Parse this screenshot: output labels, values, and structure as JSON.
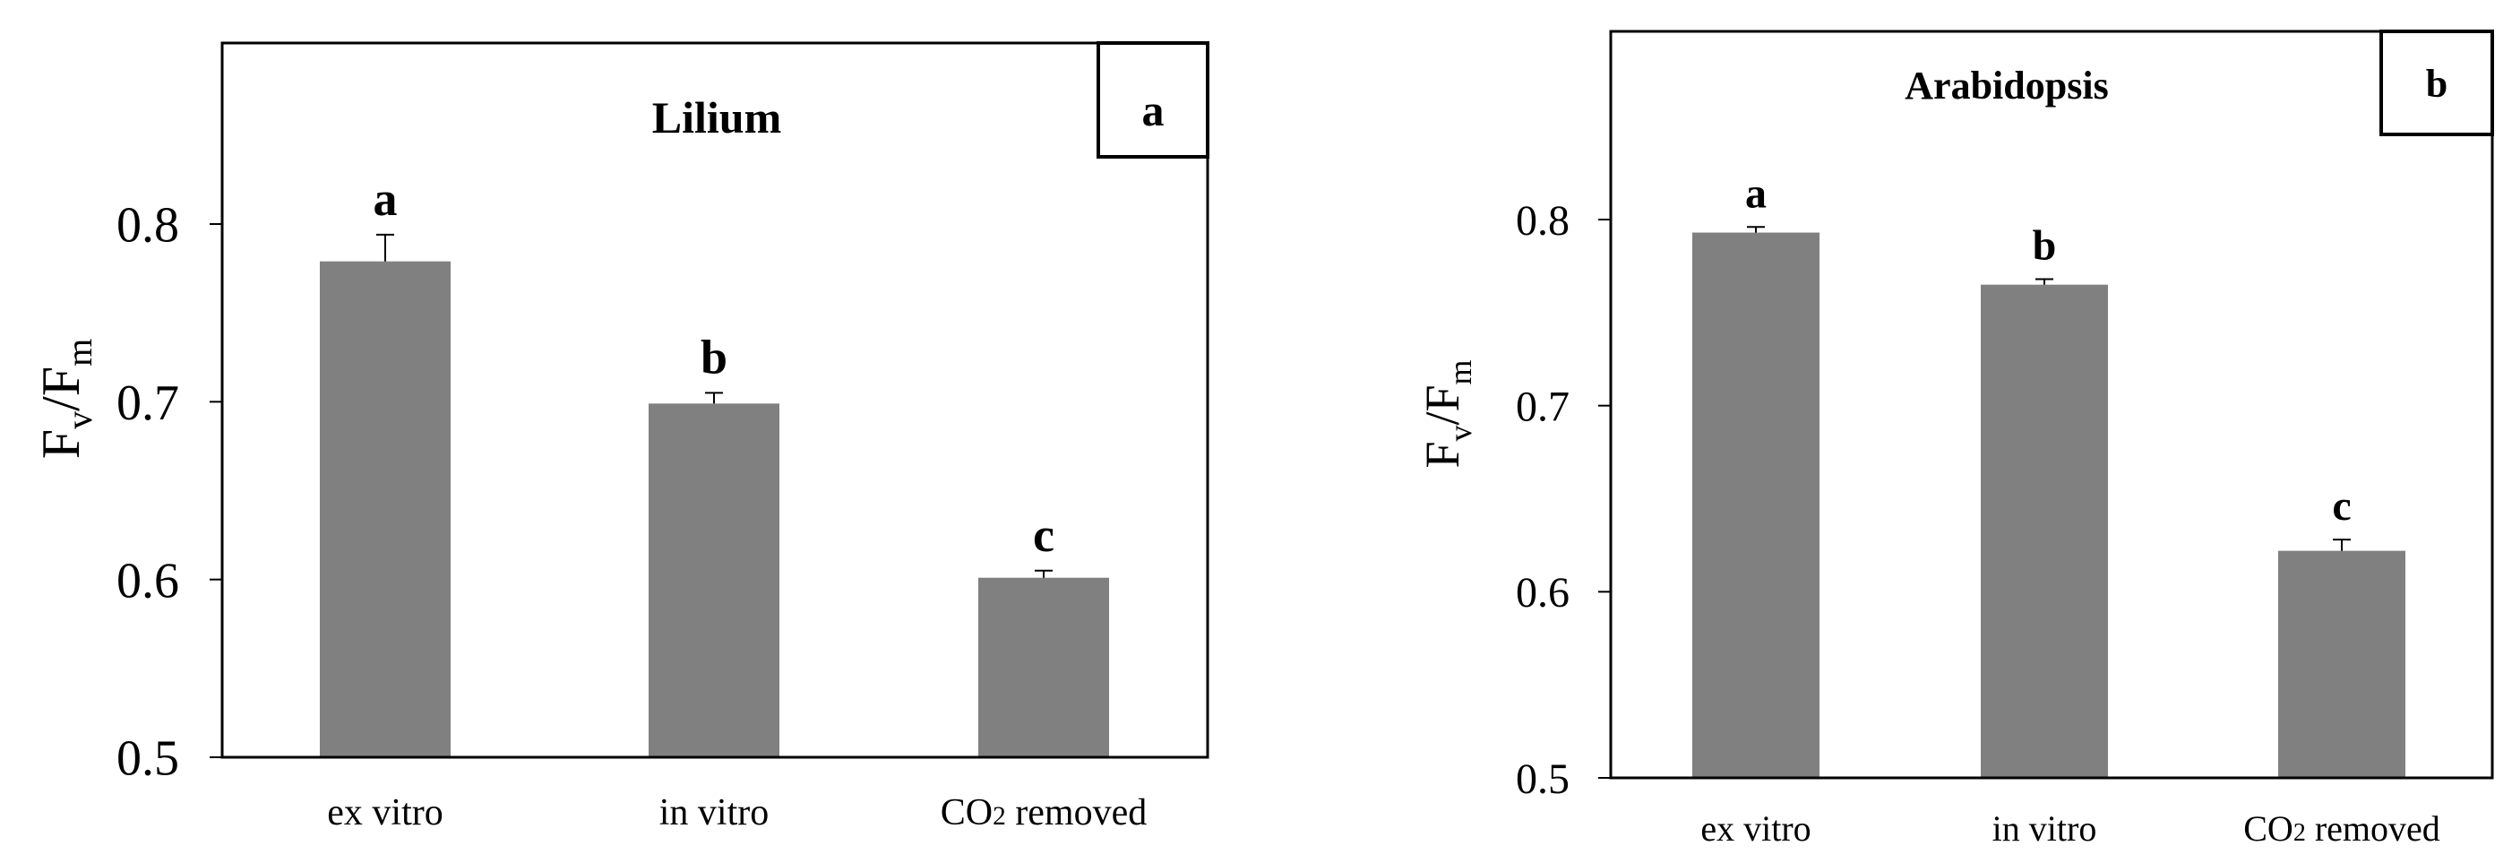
{
  "chart_data": [
    {
      "type": "bar",
      "title": "Lilium",
      "panel_label": "a",
      "ylabel": {
        "base": "F",
        "sub1": "v",
        "slash": "/F",
        "sub2": "m"
      },
      "ylim": [
        0.5,
        0.85
      ],
      "yticks": [
        "0.5",
        "0.6",
        "0.7",
        "0.8"
      ],
      "categories": [
        {
          "main": "ex vitro",
          "sub": "",
          "rest": ""
        },
        {
          "main": "in vitro",
          "sub": "",
          "rest": ""
        },
        {
          "main": "CO",
          "sub": "2",
          "rest": " removed"
        }
      ],
      "values": [
        0.779,
        0.699,
        0.601
      ],
      "errors": [
        0.015,
        0.006,
        0.004
      ],
      "significance": [
        "a",
        "b",
        "c"
      ],
      "bar_color": "#808080",
      "grid": false
    },
    {
      "type": "bar",
      "title": "Arabidopsis",
      "panel_label": "b",
      "ylabel": {
        "base": "F",
        "sub1": "v",
        "slash": "/F",
        "sub2": "m"
      },
      "ylim": [
        0.5,
        0.85
      ],
      "yticks": [
        "0.5",
        "0.6",
        "0.7",
        "0.8"
      ],
      "categories": [
        {
          "main": "ex vitro",
          "sub": "",
          "rest": ""
        },
        {
          "main": "in vitro",
          "sub": "",
          "rest": ""
        },
        {
          "main": "CO",
          "sub": "2",
          "rest": " removed"
        }
      ],
      "values": [
        0.793,
        0.765,
        0.622
      ],
      "errors": [
        0.003,
        0.003,
        0.006
      ],
      "significance": [
        "a",
        "b",
        "c"
      ],
      "bar_color": "#808080",
      "grid": false
    }
  ]
}
